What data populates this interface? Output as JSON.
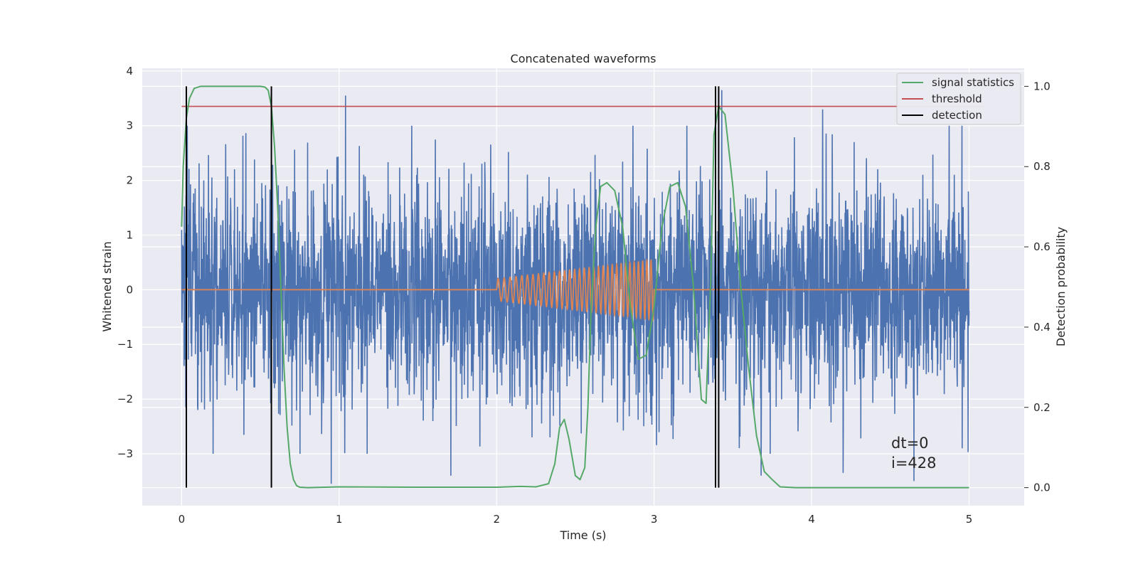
{
  "chart_data": {
    "type": "line",
    "title": "Concatenated waveforms",
    "xlabel": "Time (s)",
    "ylabel_left": "Whitened strain",
    "ylabel_right": "Detection probability",
    "xlim": [
      -0.25,
      5.35
    ],
    "ylim_left": [
      -3.95,
      4.05
    ],
    "ylim_right": [
      -0.045,
      1.045
    ],
    "x_ticks": [
      0,
      1,
      2,
      3,
      4,
      5
    ],
    "y_ticks_left": [
      -3,
      -2,
      -1,
      0,
      1,
      2,
      3,
      4
    ],
    "y_ticks_right": [
      0.0,
      0.2,
      0.4,
      0.6,
      0.8,
      1.0
    ],
    "x_tick_labels": [
      "0",
      "1",
      "2",
      "3",
      "4",
      "5"
    ],
    "y_tick_labels_left": [
      "−3",
      "−2",
      "−1",
      "0",
      "1",
      "2",
      "3",
      "4"
    ],
    "y_tick_labels_right": [
      "0.0",
      "0.2",
      "0.4",
      "0.6",
      "0.8",
      "1.0"
    ],
    "grid": true,
    "legend_position": "top-right",
    "legend": [
      "signal statistics",
      "threshold",
      "detection"
    ],
    "colors": {
      "noise": "#4c72b0",
      "injection": "#dd8452",
      "statistics": "#55a868",
      "threshold": "#c44e52",
      "detection": "#000000",
      "background": "#eaeaf2",
      "grid": "#ffffff"
    },
    "series": [
      {
        "name": "",
        "axis": "left",
        "description": "whitened strain noise, dense",
        "x_range": [
          0,
          5
        ],
        "typical_amplitude": 1.0,
        "extremes": [
          {
            "x": 1.04,
            "y": 3.55
          },
          {
            "x": 0.95,
            "y": -3.55
          },
          {
            "x": 3.43,
            "y": 3.65
          },
          {
            "x": 4.07,
            "y": 3.3
          },
          {
            "x": 3.68,
            "y": -3.4
          },
          {
            "x": 4.2,
            "y": -3.35
          },
          {
            "x": 0.2,
            "y": -3.0
          },
          {
            "x": 1.71,
            "y": -3.4
          },
          {
            "x": 4.65,
            "y": -3.5
          }
        ]
      },
      {
        "name": "",
        "axis": "left",
        "description": "injected chirp waveform",
        "x_range": [
          2.0,
          3.0
        ],
        "amplitude_start": 0.2,
        "amplitude_end": 0.55,
        "cycles": 32
      },
      {
        "name": "signal statistics",
        "axis": "right",
        "x": [
          0.0,
          0.01,
          0.03,
          0.05,
          0.08,
          0.12,
          0.2,
          0.3,
          0.4,
          0.5,
          0.53,
          0.55,
          0.57,
          0.59,
          0.61,
          0.63,
          0.65,
          0.67,
          0.69,
          0.71,
          0.73,
          0.75,
          0.8,
          1.0,
          1.5,
          2.0,
          2.15,
          2.25,
          2.33,
          2.37,
          2.4,
          2.43,
          2.46,
          2.5,
          2.53,
          2.56,
          2.58,
          2.6,
          2.63,
          2.66,
          2.7,
          2.75,
          2.8,
          2.85,
          2.9,
          2.95,
          3.0,
          3.05,
          3.1,
          3.15,
          3.2,
          3.25,
          3.3,
          3.33,
          3.36,
          3.38,
          3.41,
          3.45,
          3.5,
          3.55,
          3.6,
          3.65,
          3.7,
          3.75,
          3.8,
          3.9,
          4.5,
          5.0
        ],
        "y": [
          0.65,
          0.8,
          0.92,
          0.97,
          0.995,
          1.0,
          1.0,
          1.0,
          1.0,
          1.0,
          0.998,
          0.99,
          0.95,
          0.85,
          0.7,
          0.5,
          0.3,
          0.15,
          0.06,
          0.02,
          0.005,
          0.001,
          0.0,
          0.002,
          0.001,
          0.001,
          0.003,
          0.002,
          0.01,
          0.06,
          0.15,
          0.17,
          0.12,
          0.03,
          0.02,
          0.05,
          0.2,
          0.45,
          0.65,
          0.75,
          0.76,
          0.74,
          0.65,
          0.45,
          0.32,
          0.33,
          0.45,
          0.65,
          0.75,
          0.76,
          0.7,
          0.5,
          0.22,
          0.21,
          0.52,
          0.88,
          0.95,
          0.93,
          0.75,
          0.5,
          0.3,
          0.13,
          0.04,
          0.02,
          0.002,
          0.0,
          0.0,
          0.0
        ]
      },
      {
        "name": "threshold",
        "axis": "right",
        "x": [
          0,
          5.1
        ],
        "y": [
          0.95,
          0.95
        ]
      },
      {
        "name": "detection",
        "axis": "right",
        "type": "vlines",
        "x": [
          0.03,
          0.57,
          3.39,
          3.41
        ],
        "y_range": [
          0.0,
          1.0
        ]
      }
    ],
    "annotations": [
      "dt=0",
      "i=428"
    ]
  }
}
